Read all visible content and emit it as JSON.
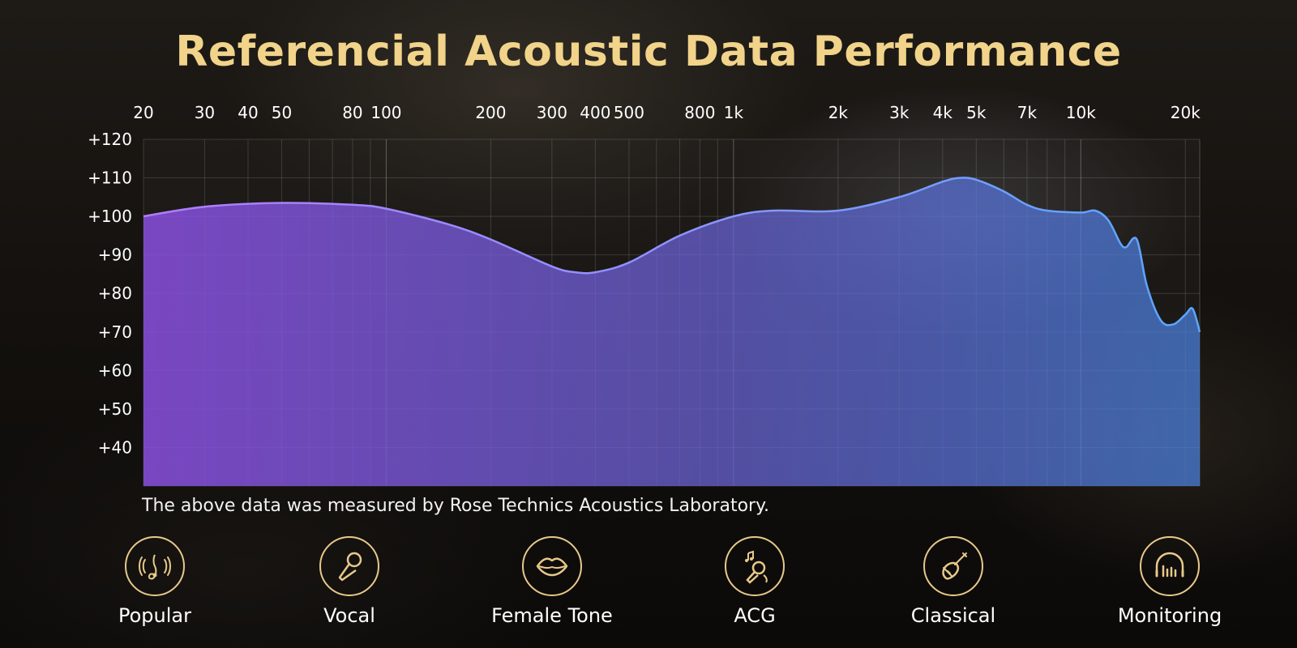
{
  "title": "Referencial Acoustic Data Performance",
  "note": "The above data was measured by Rose Technics Acoustics Laboratory.",
  "colors": {
    "title": "#f1d38a",
    "accent": "#e8c98a",
    "fill_left": "#8a4fe0",
    "fill_right": "#4a82e0",
    "line_right": "#5aa6ff"
  },
  "categories": [
    {
      "label": "Popular",
      "icon": "music-note-icon"
    },
    {
      "label": "Vocal",
      "icon": "microphone-icon"
    },
    {
      "label": "Female Tone",
      "icon": "lips-icon"
    },
    {
      "label": "ACG",
      "icon": "karaoke-mic-icon"
    },
    {
      "label": "Classical",
      "icon": "pipa-instrument-icon"
    },
    {
      "label": "Monitoring",
      "icon": "headphones-icon"
    }
  ],
  "chart_data": {
    "type": "area",
    "title": "Referencial Acoustic Data Performance",
    "xlabel": "",
    "ylabel": "",
    "x_scale": "log",
    "xlim": [
      20,
      22000
    ],
    "ylim": [
      30,
      120
    ],
    "grid": true,
    "x_tick_labels": [
      {
        "v": 20,
        "t": "20"
      },
      {
        "v": 30,
        "t": "30"
      },
      {
        "v": 40,
        "t": "40"
      },
      {
        "v": 50,
        "t": "50"
      },
      {
        "v": 80,
        "t": "80"
      },
      {
        "v": 100,
        "t": "100"
      },
      {
        "v": 200,
        "t": "200"
      },
      {
        "v": 300,
        "t": "300"
      },
      {
        "v": 400,
        "t": "400"
      },
      {
        "v": 500,
        "t": "500"
      },
      {
        "v": 800,
        "t": "800"
      },
      {
        "v": 1000,
        "t": "1k"
      },
      {
        "v": 2000,
        "t": "2k"
      },
      {
        "v": 3000,
        "t": "3k"
      },
      {
        "v": 4000,
        "t": "4k"
      },
      {
        "v": 5000,
        "t": "5k"
      },
      {
        "v": 7000,
        "t": "7k"
      },
      {
        "v": 10000,
        "t": "10k"
      },
      {
        "v": 20000,
        "t": "20k"
      }
    ],
    "y_tick_labels": [
      {
        "v": 120,
        "t": "+120"
      },
      {
        "v": 110,
        "t": "+110"
      },
      {
        "v": 100,
        "t": "+100"
      },
      {
        "v": 90,
        "t": "+90"
      },
      {
        "v": 80,
        "t": "+80"
      },
      {
        "v": 70,
        "t": "+70"
      },
      {
        "v": 60,
        "t": "+60"
      },
      {
        "v": 50,
        "t": "+50"
      },
      {
        "v": 40,
        "t": "+40"
      }
    ],
    "series": [
      {
        "x": [
          20,
          30,
          50,
          80,
          100,
          150,
          200,
          300,
          350,
          400,
          500,
          700,
          1000,
          1300,
          2000,
          3000,
          4000,
          4500,
          5000,
          6000,
          7000,
          8000,
          10000,
          11000,
          12000,
          13000,
          13500,
          14500,
          15500,
          17000,
          18500,
          20000,
          21000,
          22000
        ],
        "y": [
          100,
          102.5,
          103.5,
          103,
          102,
          98,
          94,
          87,
          85.5,
          85.5,
          88,
          95,
          100,
          101.5,
          101.5,
          105,
          109,
          110,
          109.5,
          106.5,
          103,
          101.5,
          101,
          101.5,
          99,
          93,
          92,
          94,
          82,
          73,
          72,
          74.5,
          76,
          70
        ]
      }
    ]
  }
}
